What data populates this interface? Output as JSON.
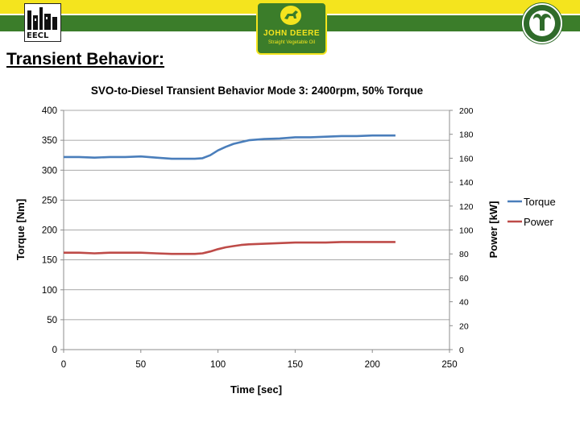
{
  "heading": "Transient Behavior:",
  "logos": {
    "left": "EECL",
    "center_name": "JOHN DEERE",
    "center_sub": "Straight Vegetable Oil",
    "right_icon": "ram-head-icon"
  },
  "colors": {
    "banner_yellow": "#f4e41e",
    "banner_green": "#3b7d2a",
    "torque": "#4a7ebb",
    "power": "#be4b48"
  },
  "chart_data": {
    "type": "line",
    "title": "SVO-to-Diesel Transient Behavior Mode 3: 2400rpm, 50% Torque",
    "xlabel": "Time [sec]",
    "ylabel": "Torque [Nm]",
    "ylabel_right": "Power [kW]",
    "xlim": [
      0,
      250
    ],
    "ylim": [
      0,
      400
    ],
    "ylim_right": [
      0,
      200
    ],
    "x_ticks": [
      0,
      50,
      100,
      150,
      200,
      250
    ],
    "y_ticks": [
      0,
      50,
      100,
      150,
      200,
      250,
      300,
      350,
      400
    ],
    "y_ticks_right": [
      0,
      20,
      40,
      60,
      80,
      100,
      120,
      140,
      160,
      180,
      200
    ],
    "grid": "horizontal",
    "legend": "right",
    "series": [
      {
        "name": "Torque",
        "axis": "left",
        "color": "#4a7ebb",
        "x": [
          0,
          10,
          20,
          30,
          40,
          50,
          60,
          70,
          80,
          85,
          90,
          95,
          100,
          105,
          110,
          115,
          120,
          130,
          140,
          150,
          160,
          170,
          180,
          190,
          200,
          210,
          215
        ],
        "y": [
          322,
          322,
          321,
          322,
          322,
          323,
          321,
          319,
          319,
          319,
          320,
          325,
          333,
          339,
          344,
          347,
          350,
          352,
          353,
          355,
          355,
          356,
          357,
          357,
          358,
          358,
          358
        ]
      },
      {
        "name": "Power",
        "axis": "right",
        "color": "#be4b48",
        "x": [
          0,
          10,
          20,
          30,
          40,
          50,
          60,
          70,
          80,
          85,
          90,
          95,
          100,
          105,
          110,
          115,
          120,
          130,
          140,
          150,
          160,
          170,
          180,
          190,
          200,
          210,
          215
        ],
        "y": [
          81,
          81,
          80.5,
          81,
          81,
          81,
          80.5,
          80,
          80,
          80,
          80.5,
          82,
          84,
          85.5,
          86.5,
          87.5,
          88,
          88.5,
          89,
          89.5,
          89.5,
          89.5,
          90,
          90,
          90,
          90,
          90
        ]
      }
    ]
  }
}
